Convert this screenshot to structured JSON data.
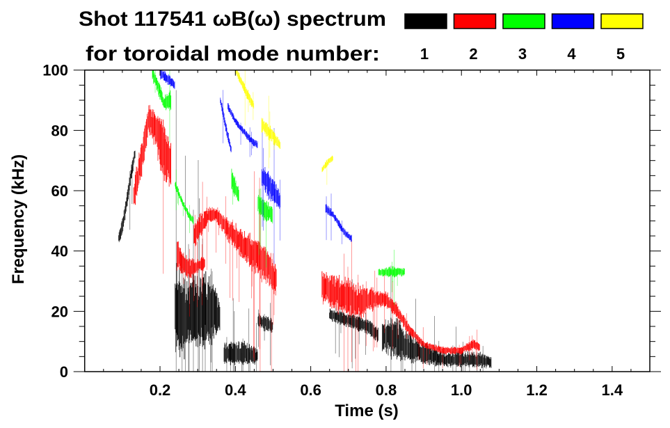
{
  "chart_data": {
    "type": "heatmap",
    "title": "Shot 117541 ωB(ω) spectrum",
    "subtitle": "for toroidal mode number:",
    "xlabel": "Time (s)",
    "ylabel": "Frequency (kHz)",
    "xlim": [
      0,
      1.5
    ],
    "ylim": [
      0,
      100
    ],
    "xticks": [
      0.2,
      0.4,
      0.6,
      0.8,
      1.0,
      1.2,
      1.4
    ],
    "xtick_labels": [
      "0.2",
      "0.4",
      "0.6",
      "0.8",
      "1.0",
      "1.2",
      "1.4"
    ],
    "yticks": [
      0,
      20,
      40,
      60,
      80,
      100
    ],
    "ytick_labels": [
      "0",
      "20",
      "40",
      "60",
      "80",
      "100"
    ],
    "legend": [
      {
        "mode": "1",
        "color": "#000000"
      },
      {
        "mode": "2",
        "color": "#ff0000"
      },
      {
        "mode": "3",
        "color": "#00ff00"
      },
      {
        "mode": "4",
        "color": "#0000ff"
      },
      {
        "mode": "5",
        "color": "#ffff00"
      }
    ],
    "legend_placement": "top-right",
    "series_note": "bands: [time_s, center_kHz, halfwidth_kHz]",
    "series": [
      {
        "mode": "1",
        "bands": [
          [
            [
              0.09,
              44,
              1.5
            ],
            [
              0.1,
              48,
              2
            ],
            [
              0.11,
              55,
              2
            ],
            [
              0.12,
              63,
              2
            ],
            [
              0.13,
              70,
              2
            ],
            [
              0.135,
              73,
              1.5
            ]
          ],
          [
            [
              0.24,
              20,
              12
            ],
            [
              0.26,
              18,
              10
            ],
            [
              0.28,
              19,
              10
            ],
            [
              0.3,
              20,
              9
            ],
            [
              0.32,
              20,
              10
            ],
            [
              0.34,
              20,
              8
            ],
            [
              0.36,
              18,
              4
            ]
          ],
          [
            [
              0.37,
              6,
              3
            ],
            [
              0.4,
              6,
              3
            ],
            [
              0.43,
              6,
              3
            ],
            [
              0.46,
              5,
              2
            ]
          ],
          [
            [
              0.46,
              17,
              2
            ],
            [
              0.48,
              16,
              2
            ],
            [
              0.5,
              15,
              2
            ]
          ],
          [
            [
              0.65,
              19,
              1.5
            ],
            [
              0.7,
              17,
              2
            ],
            [
              0.75,
              15,
              2
            ],
            [
              0.78,
              12,
              2
            ]
          ],
          [
            [
              0.79,
              12,
              4
            ],
            [
              0.82,
              11,
              6
            ],
            [
              0.86,
              8,
              4
            ],
            [
              0.9,
              6,
              3
            ],
            [
              0.95,
              4,
              2
            ],
            [
              1.0,
              4,
              2
            ],
            [
              1.05,
              4,
              2
            ],
            [
              1.08,
              3,
              1.5
            ]
          ]
        ]
      },
      {
        "mode": "2",
        "bands": [
          [
            [
              0.13,
              58,
              4
            ],
            [
              0.15,
              70,
              5
            ],
            [
              0.17,
              84,
              4
            ],
            [
              0.19,
              80,
              6
            ],
            [
              0.21,
              72,
              8
            ],
            [
              0.23,
              68,
              6
            ]
          ],
          [
            [
              0.245,
              39,
              4
            ],
            [
              0.26,
              36,
              3
            ],
            [
              0.28,
              34,
              3
            ],
            [
              0.3,
              35,
              2
            ],
            [
              0.32,
              36,
              2
            ]
          ],
          [
            [
              0.29,
              45,
              3
            ],
            [
              0.31,
              49,
              3
            ],
            [
              0.33,
              52,
              2
            ],
            [
              0.35,
              52,
              2
            ],
            [
              0.38,
              47,
              3
            ],
            [
              0.42,
              42,
              4
            ],
            [
              0.46,
              38,
              5
            ],
            [
              0.49,
              34,
              5
            ],
            [
              0.51,
              30,
              4
            ]
          ],
          [
            [
              0.63,
              28,
              4
            ],
            [
              0.67,
              26,
              5
            ],
            [
              0.72,
              23,
              5
            ],
            [
              0.76,
              24,
              3
            ],
            [
              0.8,
              24,
              2
            ],
            [
              0.83,
              20,
              2
            ],
            [
              0.86,
              14,
              1.5
            ],
            [
              0.9,
              9,
              1
            ],
            [
              0.95,
              7,
              1
            ],
            [
              1.0,
              7,
              1
            ],
            [
              1.03,
              9,
              1.5
            ],
            [
              1.05,
              8,
              1
            ]
          ]
        ]
      },
      {
        "mode": "3",
        "bands": [
          [
            [
              0.18,
              99,
              2
            ],
            [
              0.2,
              93,
              2
            ],
            [
              0.21,
              89,
              2
            ],
            [
              0.23,
              90,
              3
            ]
          ],
          [
            [
              0.24,
              62,
              1
            ],
            [
              0.26,
              56,
              1
            ],
            [
              0.28,
              51,
              1
            ],
            [
              0.29,
              50,
              1
            ]
          ],
          [
            [
              0.39,
              64,
              3
            ],
            [
              0.4,
              61,
              3
            ],
            [
              0.41,
              58,
              2
            ]
          ],
          [
            [
              0.46,
              56,
              3
            ],
            [
              0.48,
              53,
              3
            ],
            [
              0.5,
              52,
              2
            ]
          ],
          [
            [
              0.78,
              33,
              1
            ],
            [
              0.82,
              33,
              1.5
            ],
            [
              0.85,
              33,
              1
            ]
          ]
        ]
      },
      {
        "mode": "4",
        "bands": [
          [
            [
              0.2,
              99,
              1.5
            ],
            [
              0.22,
              97,
              1.5
            ],
            [
              0.24,
              95,
              1
            ]
          ],
          [
            [
              0.36,
              90,
              1
            ],
            [
              0.37,
              84,
              1.5
            ],
            [
              0.38,
              78,
              1.5
            ],
            [
              0.39,
              73,
              1
            ]
          ],
          [
            [
              0.38,
              88,
              1
            ],
            [
              0.4,
              83,
              1
            ],
            [
              0.42,
              80,
              1
            ],
            [
              0.44,
              77,
              1
            ],
            [
              0.46,
              75,
              1
            ]
          ],
          [
            [
              0.47,
              65,
              3
            ],
            [
              0.5,
              60,
              4
            ],
            [
              0.52,
              56,
              2
            ]
          ],
          [
            [
              0.64,
              54,
              1.5
            ],
            [
              0.66,
              52,
              1
            ],
            [
              0.69,
              46,
              1
            ],
            [
              0.71,
              44,
              1
            ]
          ]
        ]
      },
      {
        "mode": "5",
        "bands": [
          [
            [
              0.4,
              100,
              1
            ],
            [
              0.42,
              95,
              1.5
            ],
            [
              0.44,
              90,
              1.5
            ],
            [
              0.45,
              88,
              1
            ]
          ],
          [
            [
              0.47,
              82,
              2
            ],
            [
              0.5,
              78,
              2
            ],
            [
              0.52,
              75,
              1
            ]
          ],
          [
            [
              0.63,
              67,
              1
            ],
            [
              0.65,
              70,
              1
            ],
            [
              0.66,
              71,
              1
            ]
          ]
        ]
      }
    ]
  }
}
